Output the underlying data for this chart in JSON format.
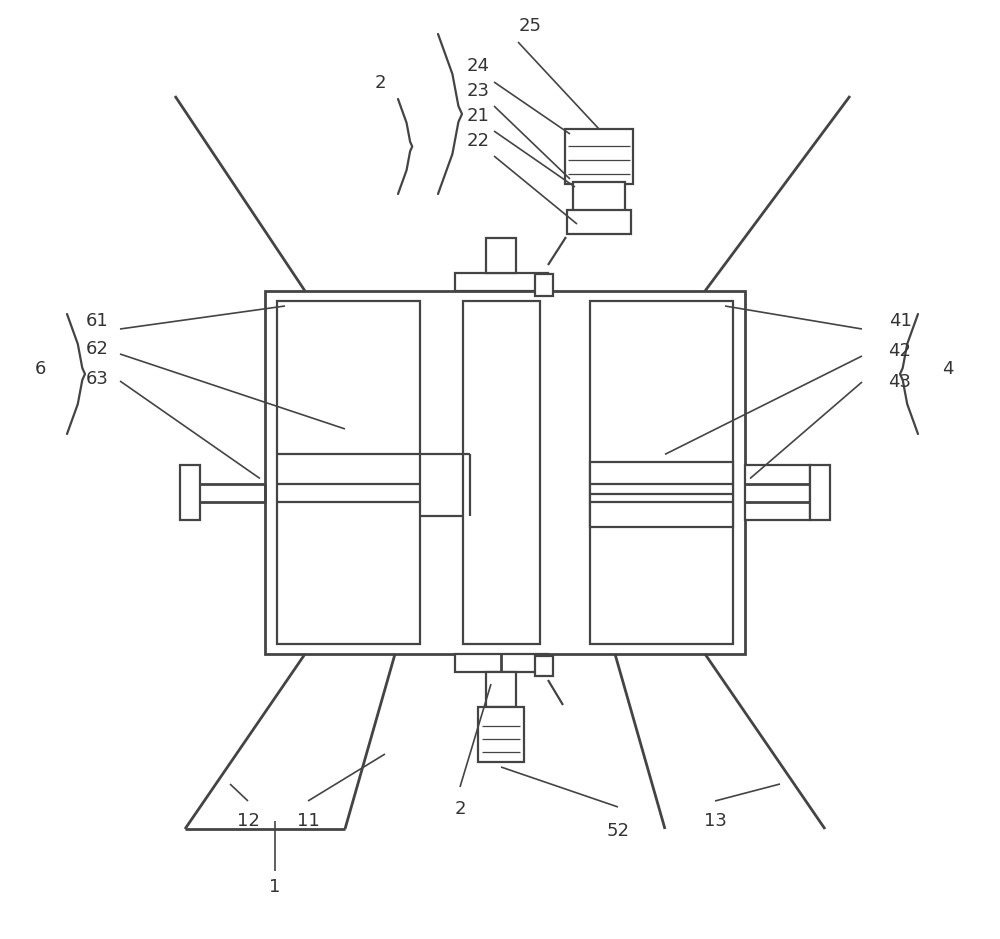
{
  "bg_color": "#ffffff",
  "lc": "#444444",
  "lw": 1.6,
  "lw_thick": 2.0,
  "figsize": [
    10.0,
    9.39
  ],
  "dpi": 100
}
